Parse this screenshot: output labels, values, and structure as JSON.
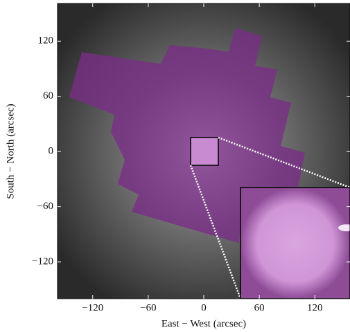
{
  "chart_data": {
    "type": "image",
    "xlabel": "East − West (arcsec)",
    "ylabel": "South − North (arcsec)",
    "xlim": [
      -158,
      158
    ],
    "ylim": [
      -160,
      161
    ],
    "xticks": [
      {
        "value": -120,
        "label": "−120"
      },
      {
        "value": -60,
        "label": "−60"
      },
      0,
      60,
      120
    ],
    "yticks": [
      {
        "value": -120,
        "label": "−120"
      },
      {
        "value": -60,
        "label": "−60"
      },
      0,
      60,
      120
    ]
  }
}
